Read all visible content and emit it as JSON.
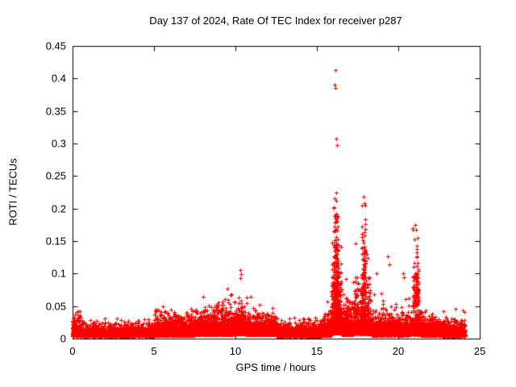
{
  "chart_data": {
    "type": "scatter",
    "title": "Day 137 of 2024, Rate Of TEC Index for receiver p287",
    "xlabel": "GPS time / hours",
    "ylabel": "ROTI / TECUs",
    "xlim": [
      0,
      25
    ],
    "ylim": [
      0,
      0.45
    ],
    "xticks": [
      0,
      5,
      10,
      15,
      20,
      25
    ],
    "xtick_labels": [
      "0",
      "5",
      "10",
      "15",
      "20",
      "25"
    ],
    "yticks": [
      0,
      0.05,
      0.1,
      0.15,
      0.2,
      0.25,
      0.3,
      0.35,
      0.4,
      0.45
    ],
    "ytick_labels": [
      "0",
      "0.05",
      "0.1",
      "0.15",
      "0.2",
      "0.25",
      "0.3",
      "0.35",
      "0.4",
      "0.45"
    ],
    "grid": false,
    "legend": null,
    "marker": "plus",
    "marker_color": "#ff0000",
    "marker_size": 5,
    "axis_color": "#000000",
    "background": "#ffffff",
    "seed": 137,
    "series": [
      {
        "name": "ROTI",
        "note": "dense scatter summarized as time segments: t0,t1 = hours range, n = point count, base/typ = lower bound and typical value of ROTI, max = segment envelope maximum (TECUs)",
        "segments": [
          {
            "t0": 0.0,
            "t1": 0.5,
            "n": 350,
            "base": 0.004,
            "typ": 0.012,
            "max": 0.042
          },
          {
            "t0": 0.5,
            "t1": 5.0,
            "n": 1900,
            "base": 0.004,
            "typ": 0.009,
            "max": 0.032
          },
          {
            "t0": 5.0,
            "t1": 6.5,
            "n": 850,
            "base": 0.005,
            "typ": 0.013,
            "max": 0.065
          },
          {
            "t0": 6.5,
            "t1": 7.5,
            "n": 550,
            "base": 0.005,
            "typ": 0.012,
            "max": 0.05
          },
          {
            "t0": 7.5,
            "t1": 9.0,
            "n": 950,
            "base": 0.006,
            "typ": 0.016,
            "max": 0.075
          },
          {
            "t0": 9.0,
            "t1": 10.0,
            "n": 650,
            "base": 0.006,
            "typ": 0.017,
            "max": 0.08
          },
          {
            "t0": 10.0,
            "t1": 10.6,
            "n": 420,
            "base": 0.007,
            "typ": 0.018,
            "max": 0.105
          },
          {
            "t0": 10.6,
            "t1": 12.5,
            "n": 1050,
            "base": 0.006,
            "typ": 0.014,
            "max": 0.07
          },
          {
            "t0": 12.5,
            "t1": 15.3,
            "n": 1450,
            "base": 0.004,
            "typ": 0.009,
            "max": 0.035
          },
          {
            "t0": 15.3,
            "t1": 15.9,
            "n": 380,
            "base": 0.005,
            "typ": 0.012,
            "max": 0.06
          },
          {
            "t0": 15.9,
            "t1": 16.5,
            "n": 450,
            "base": 0.008,
            "typ": 0.04,
            "max": 0.2
          },
          {
            "t0": 16.05,
            "t1": 16.3,
            "n": 220,
            "base": 0.02,
            "typ": 0.09,
            "max": 0.235
          },
          {
            "t0": 16.5,
            "t1": 17.3,
            "n": 480,
            "base": 0.006,
            "typ": 0.02,
            "max": 0.1
          },
          {
            "t0": 17.3,
            "t1": 18.3,
            "n": 580,
            "base": 0.007,
            "typ": 0.028,
            "max": 0.205
          },
          {
            "t0": 17.75,
            "t1": 18.0,
            "n": 120,
            "base": 0.03,
            "typ": 0.09,
            "max": 0.215
          },
          {
            "t0": 18.3,
            "t1": 19.6,
            "n": 680,
            "base": 0.005,
            "typ": 0.014,
            "max": 0.115
          },
          {
            "t0": 19.6,
            "t1": 20.6,
            "n": 540,
            "base": 0.005,
            "typ": 0.013,
            "max": 0.1
          },
          {
            "t0": 20.6,
            "t1": 21.4,
            "n": 440,
            "base": 0.006,
            "typ": 0.018,
            "max": 0.16
          },
          {
            "t0": 20.9,
            "t1": 21.25,
            "n": 90,
            "base": 0.05,
            "typ": 0.08,
            "max": 0.175
          },
          {
            "t0": 21.4,
            "t1": 22.6,
            "n": 640,
            "base": 0.005,
            "typ": 0.012,
            "max": 0.06
          },
          {
            "t0": 22.6,
            "t1": 24.1,
            "n": 780,
            "base": 0.004,
            "typ": 0.01,
            "max": 0.05
          }
        ],
        "outliers": [
          [
            16.12,
            0.413
          ],
          [
            16.09,
            0.391
          ],
          [
            16.16,
            0.386
          ],
          [
            16.2,
            0.307
          ],
          [
            16.22,
            0.297
          ],
          [
            17.88,
            0.218
          ],
          [
            17.92,
            0.208
          ],
          [
            18.05,
            0.13
          ],
          [
            18.12,
            0.124
          ],
          [
            19.38,
            0.127
          ],
          [
            19.45,
            0.114
          ],
          [
            20.3,
            0.1
          ],
          [
            20.34,
            0.094
          ],
          [
            21.02,
            0.175
          ],
          [
            21.08,
            0.167
          ],
          [
            20.97,
            0.152
          ],
          [
            21.12,
            0.143
          ],
          [
            10.28,
            0.105
          ],
          [
            10.33,
            0.099
          ],
          [
            10.31,
            0.093
          ],
          [
            23.52,
            0.046
          ]
        ]
      }
    ]
  }
}
